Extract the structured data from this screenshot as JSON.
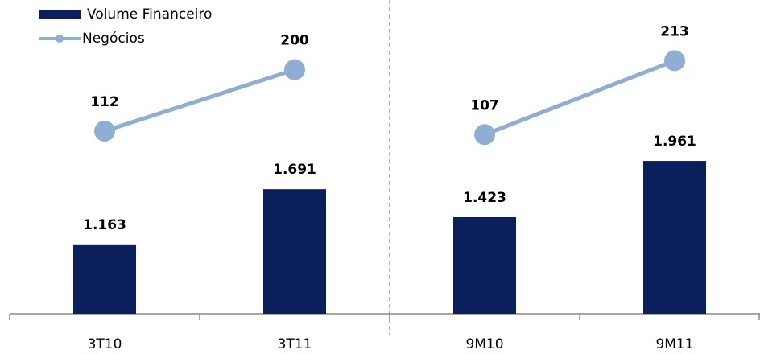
{
  "chart_data": {
    "type": "bar",
    "categories": [
      "3T10",
      "3T11",
      "9M10",
      "9M11"
    ],
    "series": [
      {
        "name": "Volume Financeiro",
        "type": "bar",
        "color": "#0b1f5c",
        "values": [
          1163,
          1691,
          1423,
          1961
        ],
        "value_labels": [
          "1.163",
          "1.691",
          "1.423",
          "1.961"
        ]
      },
      {
        "name": "Negócios",
        "type": "line",
        "axis": "y2",
        "color": "#8eaed6",
        "values": [
          112,
          200,
          107,
          213
        ]
      }
    ],
    "ylim": [
      500,
      3500
    ],
    "y2lim": [
      -150,
      300
    ],
    "legend": "top-left"
  }
}
